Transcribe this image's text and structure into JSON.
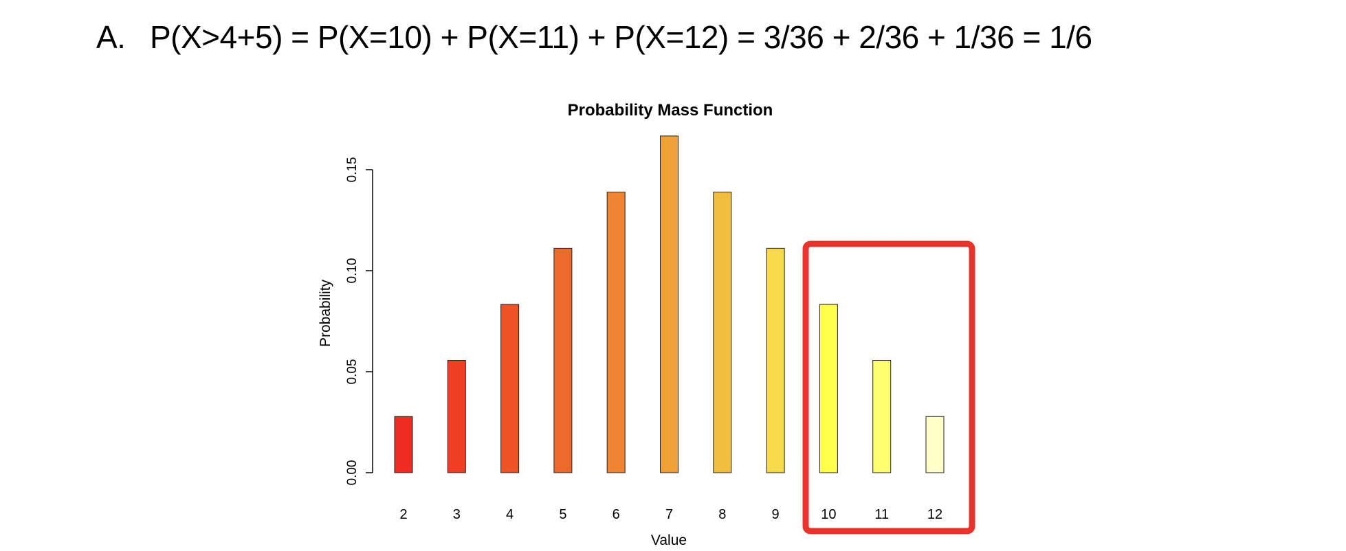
{
  "heading": {
    "label": "A.",
    "equation": "P(X>4+5) = P(X=10) + P(X=11) + P(X=12) = 3/36 + 2/36 + 1/36 = 1/6"
  },
  "chart_data": {
    "type": "bar",
    "title": "Probability Mass Function",
    "xlabel": "Value",
    "ylabel": "Probability",
    "ylim": [
      0,
      0.1667
    ],
    "yticks": [
      "0.00",
      "0.05",
      "0.10",
      "0.15"
    ],
    "ytick_values": [
      0,
      0.05,
      0.1,
      0.15
    ],
    "grid": false,
    "categories": [
      "2",
      "3",
      "4",
      "5",
      "6",
      "7",
      "8",
      "9",
      "10",
      "11",
      "12"
    ],
    "values": [
      0.0278,
      0.0556,
      0.0833,
      0.1111,
      0.1389,
      0.1667,
      0.1389,
      0.1111,
      0.0833,
      0.0556,
      0.0278
    ],
    "colors": [
      "#ee2d22",
      "#ef3f23",
      "#ee5226",
      "#ee6a2c",
      "#ef8532",
      "#f0a138",
      "#f2be3f",
      "#f8d94a",
      "#ffff4c",
      "#ffff70",
      "#ffffc8"
    ],
    "highlight": {
      "categories": [
        "10",
        "11",
        "12"
      ],
      "color": "#e8342a"
    }
  }
}
